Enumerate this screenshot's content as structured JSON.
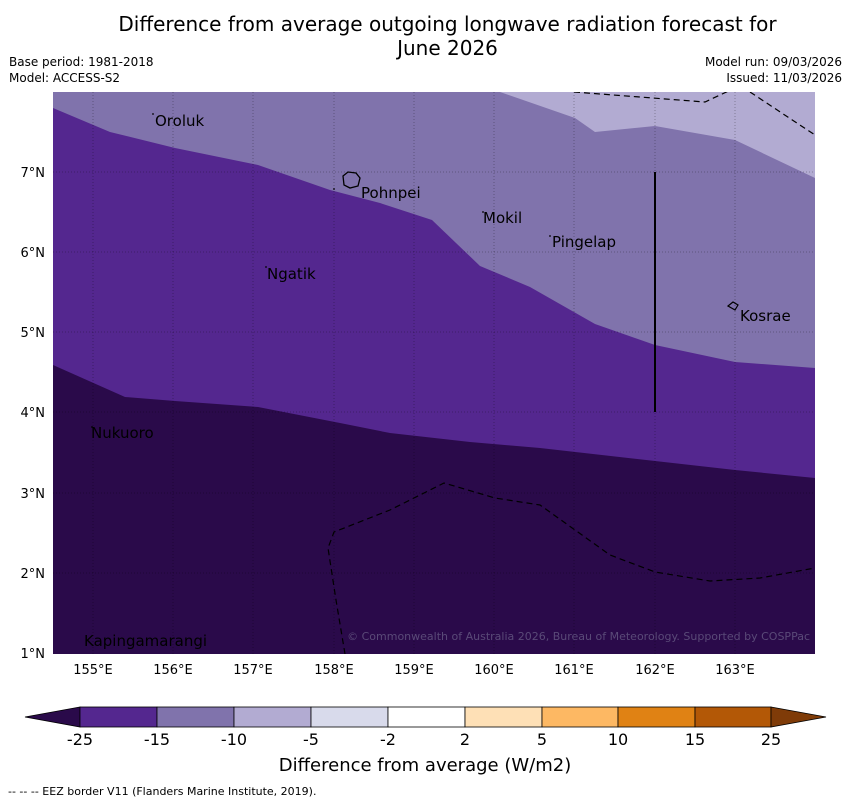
{
  "header": {
    "title_line1": "Difference from average outgoing longwave radiation forecast for",
    "title_line2": "June 2026",
    "base_period": "Base period: 1981-2018",
    "model": "Model: ACCESS-S2",
    "model_run": "Model run: 09/03/2026",
    "issued": "Issued: 11/03/2026"
  },
  "map": {
    "lon_labels": [
      "155°E",
      "156°E",
      "157°E",
      "158°E",
      "159°E",
      "160°E",
      "161°E",
      "162°E",
      "163°E"
    ],
    "lat_labels": [
      "7°N",
      "6°N",
      "5°N",
      "4°N",
      "3°N",
      "2°N",
      "1°N"
    ],
    "islands": [
      "Oroluk",
      "Pohnpei",
      "Mokil",
      "Pingelap",
      "Ngatik",
      "Kosrae",
      "Nukuoro",
      "Kapingamarangi"
    ],
    "copyright": "© Commonwealth of Australia 2026, Bureau of Meteorology. Supported by COSPPac"
  },
  "colorbar": {
    "ticks": [
      "-25",
      "-15",
      "-10",
      "-5",
      "-2",
      "2",
      "5",
      "10",
      "15",
      "25"
    ],
    "colors": {
      "below_min": "#2a0a4a",
      "c1": "#54278f",
      "c2": "#8073ac",
      "c3": "#b2abd2",
      "c4": "#d8daeb",
      "c5": "#ffffff",
      "c6": "#fee0b6",
      "c7": "#fdb863",
      "c8": "#e08214",
      "c9": "#b35806",
      "above_max": "#7f3b08"
    },
    "title": "Difference from average (W/m2)"
  },
  "footnote": "--  --  -- EEZ border V11 (Flanders Marine Institute, 2019)."
}
